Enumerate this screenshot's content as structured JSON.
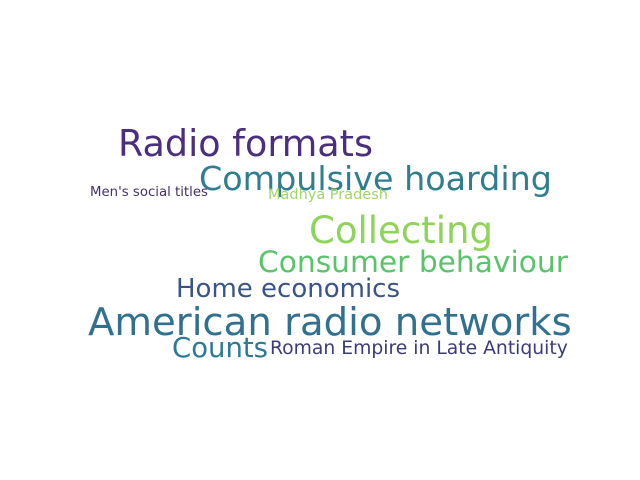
{
  "words": [
    {
      "text": "Radio formats",
      "color": "#4b2f7e"
    },
    {
      "text": "Compulsive hoarding",
      "color": "#2f7d8e"
    },
    {
      "text": "Men's social titles",
      "color": "#44306e"
    },
    {
      "text": "Madhya Pradesh",
      "color": "#a0d56a"
    },
    {
      "text": "Collecting",
      "color": "#8fd45a"
    },
    {
      "text": "Consumer behaviour",
      "color": "#5bc36a"
    },
    {
      "text": "Home economics",
      "color": "#3b5487"
    },
    {
      "text": "American radio networks",
      "color": "#31708f"
    },
    {
      "text": "Counts",
      "color": "#2c7a95"
    },
    {
      "text": "Roman Empire in Late Antiquity",
      "color": "#3b3b78"
    }
  ]
}
